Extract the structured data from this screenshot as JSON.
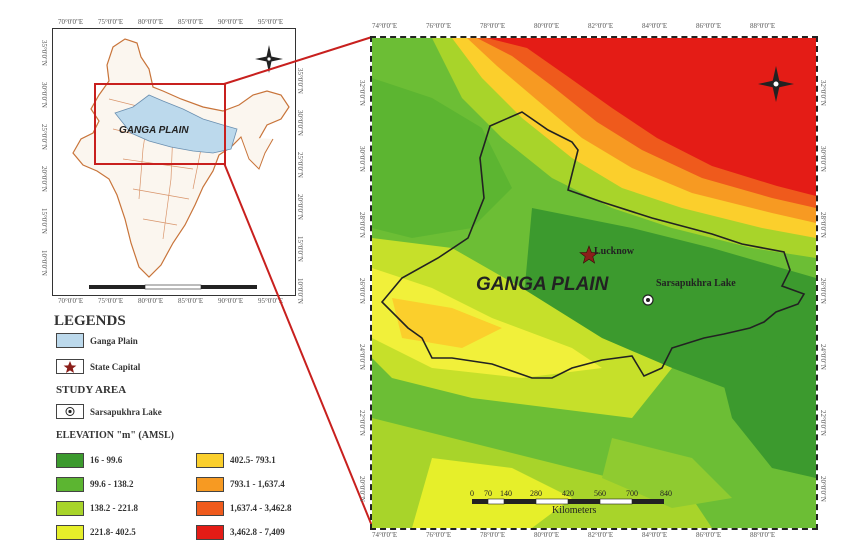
{
  "inset": {
    "top_coords": [
      "70°0'0\"E",
      "75°0'0\"E",
      "80°0'0\"E",
      "85°0'0\"E",
      "90°0'0\"E",
      "95°0'0\"E"
    ],
    "bottom_coords": [
      "70°0'0\"E",
      "75°0'0\"E",
      "80°0'0\"E",
      "85°0'0\"E",
      "90°0'0\"E",
      "95°0'0\"E"
    ],
    "left_coords": [
      "35°0'0\"N",
      "30°0'0\"N",
      "25°0'0\"N",
      "20°0'0\"N",
      "15°0'0\"N",
      "10°0'0\"N"
    ],
    "right_coords": [
      "35°0'0\"N",
      "30°0'0\"N",
      "25°0'0\"N",
      "20°0'0\"N",
      "15°0'0\"N",
      "10°0'0\"N"
    ],
    "region_label": "GANGA PLAIN"
  },
  "main_map": {
    "top_coords": [
      "74°0'0\"E",
      "76°0'0\"E",
      "78°0'0\"E",
      "80°0'0\"E",
      "82°0'0\"E",
      "84°0'0\"E",
      "86°0'0\"E",
      "88°0'0\"E"
    ],
    "bottom_coords": [
      "74°0'0\"E",
      "76°0'0\"E",
      "78°0'0\"E",
      "80°0'0\"E",
      "82°0'0\"E",
      "84°0'0\"E",
      "86°0'0\"E",
      "88°0'0\"E"
    ],
    "left_coords": [
      "32°0'0\"N",
      "30°0'0\"N",
      "28°0'0\"N",
      "26°0'0\"N",
      "24°0'0\"N",
      "22°0'0\"N",
      "20°0'0\"N"
    ],
    "right_coords": [
      "32°0'0\"N",
      "30°0'0\"N",
      "28°0'0\"N",
      "26°0'0\"N",
      "24°0'0\"N",
      "22°0'0\"N",
      "20°0'0\"N"
    ],
    "region_label": "GANGA PLAIN",
    "capital_label": "Lucknow",
    "lake_label": "Sarsapukhra Lake",
    "scale_ticks": [
      "0",
      "70",
      "140",
      "280",
      "420",
      "560",
      "700",
      "840"
    ],
    "scale_unit": "Kilometers"
  },
  "legend": {
    "title": "LEGENDS",
    "ganga_plain": "Ganga Plain",
    "state_capital": "State Capital",
    "study_area_heading": "STUDY AREA",
    "study_area_item": "Sarsapukhra Lake",
    "elevation_heading": "ELEVATION \"m\" (AMSL)",
    "elevation_classes": [
      {
        "label": "16 - 99.6",
        "color": "#3c9a2e"
      },
      {
        "label": "99.6 - 138.2",
        "color": "#5cb531"
      },
      {
        "label": "138.2 - 221.8",
        "color": "#a8d42a"
      },
      {
        "label": "221.8- 402.5",
        "color": "#e6ef2a"
      },
      {
        "label": "402.5- 793.1",
        "color": "#fbcf2c"
      },
      {
        "label": "793.1 - 1,637.4",
        "color": "#f79a22"
      },
      {
        "label": "1,637.4 - 3,462.8",
        "color": "#ef5a1c"
      },
      {
        "label": "3,462.8 - 7,409",
        "color": "#e41c16"
      }
    ]
  }
}
